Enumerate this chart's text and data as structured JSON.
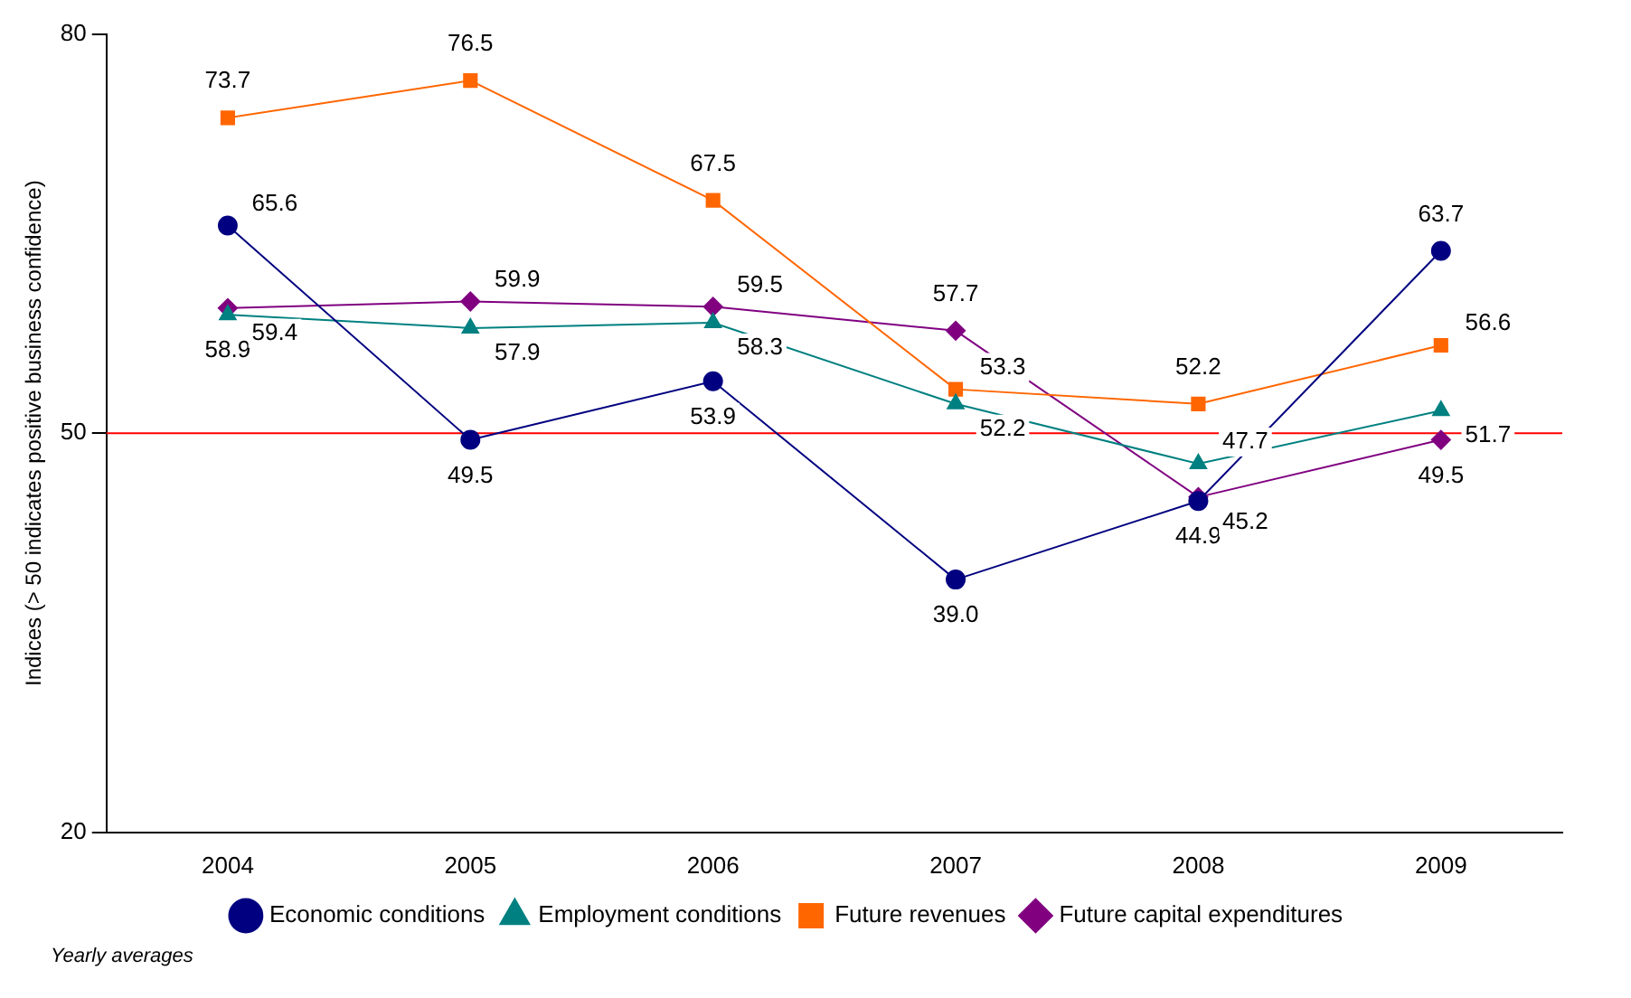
{
  "chart_data": {
    "type": "line",
    "ylabel": "Indices (> 50 indicates positive business confidence)",
    "categories": [
      "2004",
      "2005",
      "2006",
      "2007",
      "2008",
      "2009"
    ],
    "series": [
      {
        "name": "Economic conditions",
        "color": "#000080",
        "marker": "circle",
        "values": [
          65.6,
          49.5,
          53.9,
          39.0,
          44.9,
          63.7
        ],
        "value_labels": [
          "65.6",
          "49.5",
          "53.9",
          "39.0",
          "44.9",
          "63.7"
        ]
      },
      {
        "name": "Employment conditions",
        "color": "#008080",
        "marker": "triangle",
        "values": [
          58.9,
          57.9,
          58.3,
          52.2,
          47.7,
          51.7
        ],
        "value_labels": [
          "58.9",
          "57.9",
          "58.3",
          "52.2",
          "47.7",
          "51.7"
        ]
      },
      {
        "name": "Future revenues",
        "color": "#ff6600",
        "marker": "square",
        "values": [
          73.7,
          76.5,
          67.5,
          53.3,
          52.2,
          56.6
        ],
        "value_labels": [
          "73.7",
          "76.5",
          "67.5",
          "53.3",
          "52.2",
          "56.6"
        ]
      },
      {
        "name": "Future capital expenditures",
        "color": "#800080",
        "marker": "diamond",
        "values": [
          59.4,
          59.9,
          59.5,
          57.7,
          45.2,
          49.5
        ],
        "value_labels": [
          "59.4",
          "59.9",
          "59.5",
          "57.7",
          "45.2",
          "49.5"
        ]
      }
    ],
    "ylim": [
      20,
      80
    ],
    "yticks": [
      20,
      50,
      80
    ],
    "grid": false,
    "legend": "bottom",
    "ref_lines": [
      {
        "axis": "y",
        "value": 50,
        "color": "#ff0000"
      }
    ],
    "annotations": [
      "Yearly averages"
    ]
  }
}
